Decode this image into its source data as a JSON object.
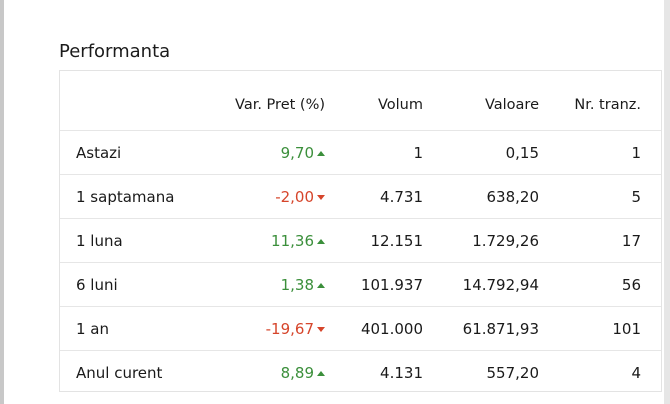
{
  "section": {
    "title": "Performanta"
  },
  "table": {
    "headers": {
      "period": "",
      "var_pret": "Var. Pret (%)",
      "volum": "Volum",
      "valoare": "Valoare",
      "nr_tranz": "Nr. tranz."
    },
    "rows": [
      {
        "period": "Astazi",
        "var": "9,70",
        "trend": "up",
        "volum": "1",
        "valoare": "0,15",
        "nr": "1"
      },
      {
        "period": "1 saptamana",
        "var": "-2,00",
        "trend": "down",
        "volum": "4.731",
        "valoare": "638,20",
        "nr": "5"
      },
      {
        "period": "1 luna",
        "var": "11,36",
        "trend": "up",
        "volum": "12.151",
        "valoare": "1.729,26",
        "nr": "17"
      },
      {
        "period": "6 luni",
        "var": "1,38",
        "trend": "up",
        "volum": "101.937",
        "valoare": "14.792,94",
        "nr": "56"
      },
      {
        "period": "1 an",
        "var": "-19,67",
        "trend": "down",
        "volum": "401.000",
        "valoare": "61.871,93",
        "nr": "101"
      },
      {
        "period": "Anul curent",
        "var": "8,89",
        "trend": "up",
        "volum": "4.131",
        "valoare": "557,20",
        "nr": "4"
      }
    ]
  },
  "colors": {
    "positive": "#3b8f3b",
    "negative": "#d6452b",
    "border": "#e3e3e3"
  },
  "icons": {
    "up": "triangle-up-icon",
    "down": "triangle-down-icon"
  }
}
